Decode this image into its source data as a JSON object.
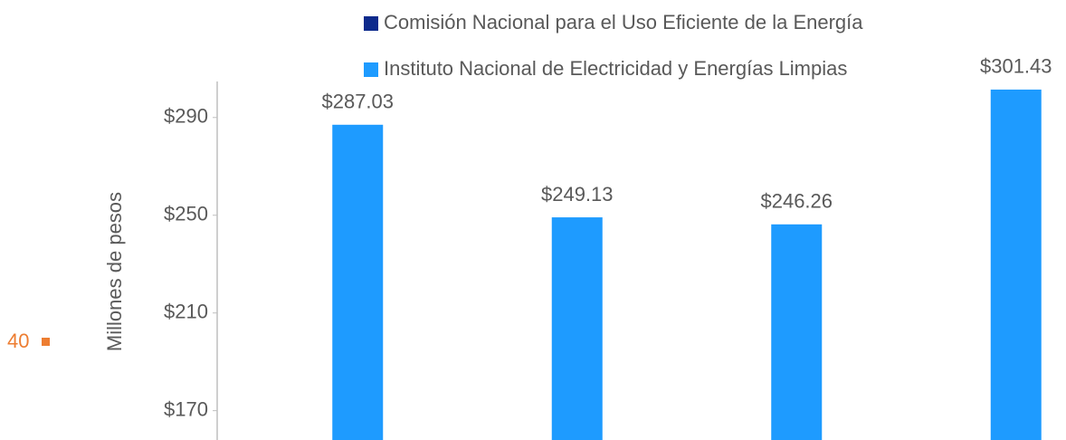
{
  "chart_data": {
    "type": "bar",
    "y_axis_label": "Millones de pesos",
    "annotation": "40",
    "categories": [
      null,
      null,
      null,
      null
    ],
    "series": [
      {
        "name": "Comisión Nacional para el Uso Eficiente de la Energía",
        "color": "#0d2a8c",
        "values": [
          null,
          null,
          null,
          null
        ]
      },
      {
        "name": "Instituto Nacional de Electricidad y Energías Limpias",
        "color": "#1e9bff",
        "values": [
          287.03,
          249.13,
          246.26,
          301.43
        ],
        "value_labels": [
          "$287.03",
          "$249.13",
          "$246.26",
          "$301.43"
        ]
      }
    ],
    "ylim": [
      158,
      304
    ],
    "yticks": [
      {
        "value": 170,
        "label": "$170"
      },
      {
        "value": 210,
        "label": "$210"
      },
      {
        "value": 250,
        "label": "$250"
      },
      {
        "value": 290,
        "label": "$290"
      }
    ],
    "legend": "top"
  }
}
